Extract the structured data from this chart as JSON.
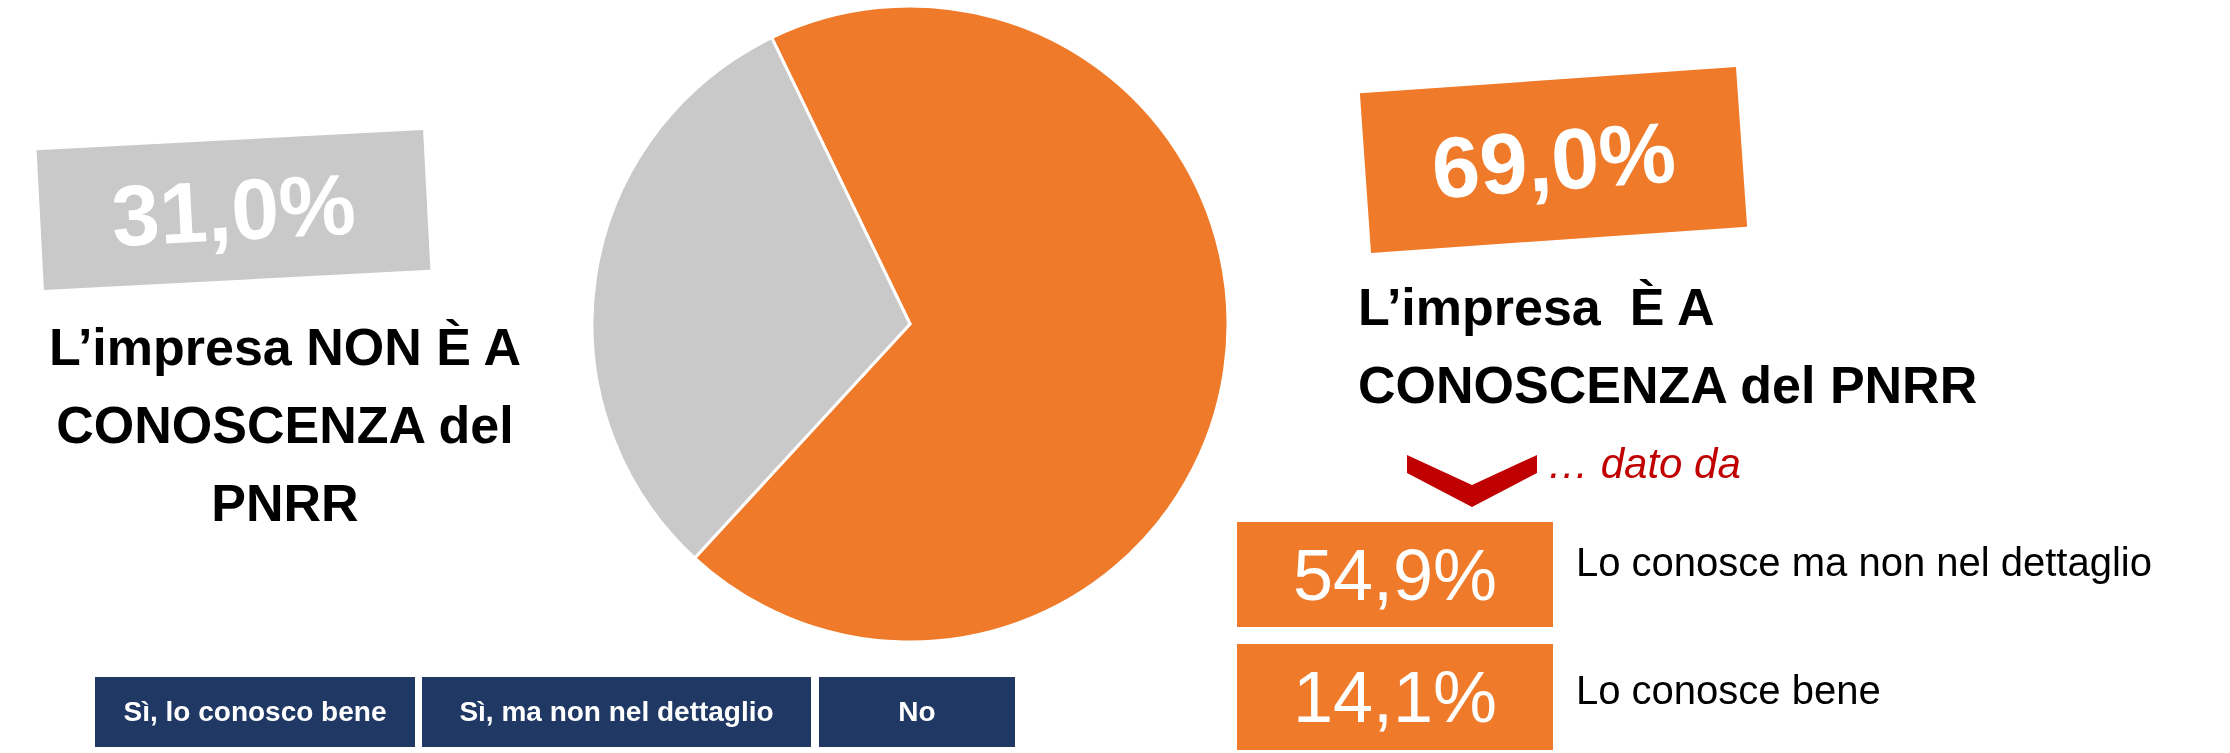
{
  "chart_data": {
    "type": "pie",
    "categories": [
      "L’impresa  È A\nCONOSCENZA del PNRR",
      "L’impresa NON È A\nCONOSCENZA del\nPNRR"
    ],
    "values": [
      69.0,
      31.0
    ],
    "colors": [
      "#ef7a2a",
      "#c9c9c9"
    ],
    "value_labels": [
      "69,0%",
      "31,0%"
    ],
    "annotations": [
      "… dato da",
      "54,9%",
      "Lo conosce ma non nel dettaglio",
      "14,1%",
      "Lo conosce bene",
      "Sì, lo conosco bene",
      "Sì, ma non nel dettaglio",
      "No"
    ]
  }
}
